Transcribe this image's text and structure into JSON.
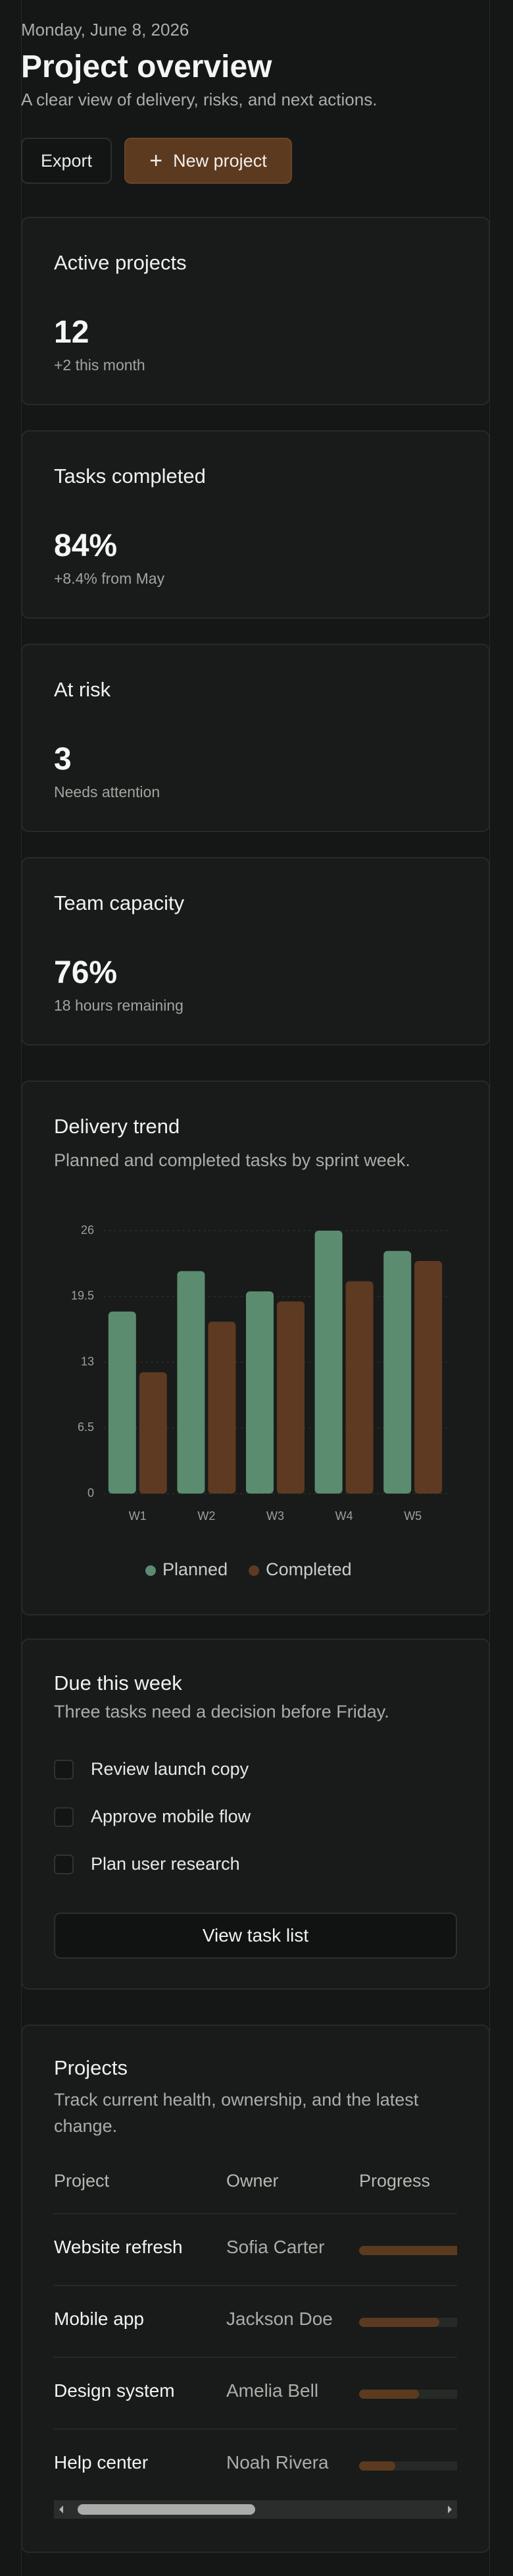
{
  "header": {
    "date": "Monday, June 8, 2026",
    "title": "Project overview",
    "subtitle": "A clear view of delivery, risks, and next actions.",
    "export_button": "Export",
    "new_project_button": "New project"
  },
  "stats": [
    {
      "label": "Active projects",
      "value": "12",
      "note": "+2 this month"
    },
    {
      "label": "Tasks completed",
      "value": "84%",
      "note": "+8.4% from May"
    },
    {
      "label": "At risk",
      "value": "3",
      "note": "Needs attention"
    },
    {
      "label": "Team capacity",
      "value": "76%",
      "note": "18 hours remaining"
    }
  ],
  "chart_data": {
    "type": "bar",
    "title": "Delivery trend",
    "subtitle": "Planned and completed tasks by sprint week.",
    "categories": [
      "W1",
      "W2",
      "W3",
      "W4",
      "W5"
    ],
    "series": [
      {
        "name": "Planned",
        "color": "#5b8c70",
        "values": [
          18,
          22,
          20,
          26,
          24
        ]
      },
      {
        "name": "Completed",
        "color": "#5e3a22",
        "values": [
          12,
          17,
          19,
          21,
          23
        ]
      }
    ],
    "ylim": [
      0,
      26
    ],
    "yticks": [
      0,
      6.5,
      13,
      19.5,
      26
    ],
    "grid": true,
    "legend": "bottom"
  },
  "due": {
    "title": "Due this week",
    "subtitle": "Three tasks need a decision before Friday.",
    "tasks": [
      "Review launch copy",
      "Approve mobile flow",
      "Plan user research"
    ],
    "button": "View task list"
  },
  "projects": {
    "title": "Projects",
    "subtitle": "Track current health, ownership, and the latest change.",
    "columns": [
      "Project",
      "Owner",
      "Progress"
    ],
    "rows": [
      {
        "name": "Website refresh",
        "owner": "Sofia Carter",
        "progress": 72
      },
      {
        "name": "Mobile app",
        "owner": "Jackson Doe",
        "progress": 47
      },
      {
        "name": "Design system",
        "owner": "Amelia Bell",
        "progress": 35
      },
      {
        "name": "Help center",
        "owner": "Noah Rivera",
        "progress": 21
      }
    ]
  }
}
